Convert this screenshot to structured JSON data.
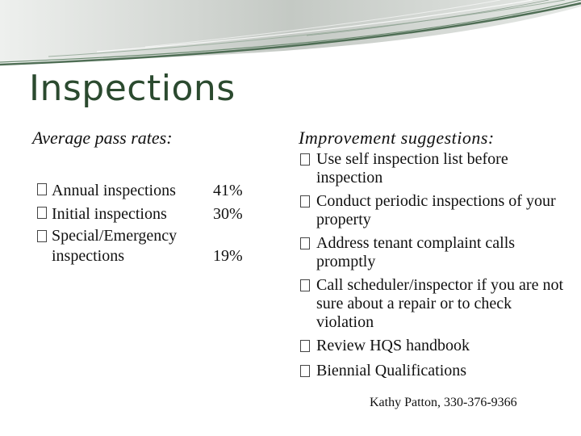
{
  "slide": {
    "title": "Inspections",
    "left_heading": "Average pass rates:",
    "right_heading": "Improvement suggestions:",
    "pass_rates": [
      {
        "label": "Annual inspections",
        "value": "41%"
      },
      {
        "label": "Initial inspections",
        "value": "30%"
      },
      {
        "label": "Special/Emergency inspections",
        "value": "19%"
      }
    ],
    "suggestions": [
      "Use self inspection list before inspection",
      "Conduct periodic inspections of your property",
      "Address tenant complaint calls promptly",
      "Call scheduler/inspector if you are not sure about a repair or to check violation",
      "Review HQS handbook",
      "Biennial Qualifications"
    ],
    "footer": "Kathy Patton, 330-376-9366"
  },
  "theme": {
    "title_color": "#2b4a2f",
    "banner_green": "#4f6e55",
    "banner_grey": "#c9cdc9"
  }
}
